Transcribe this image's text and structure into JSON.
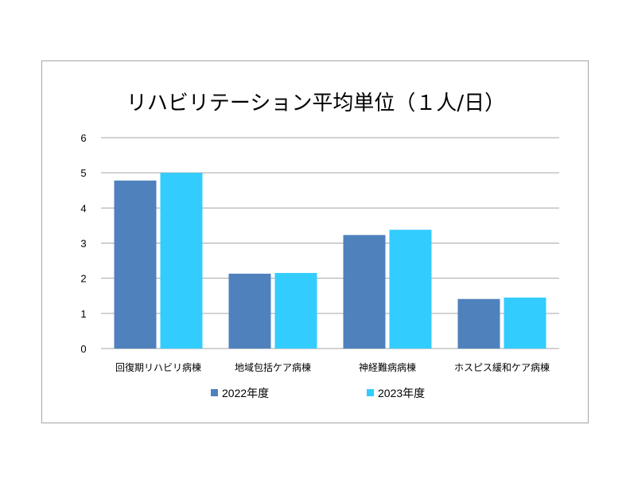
{
  "chart_data": {
    "type": "bar",
    "title": "リハビリテーション平均単位（１人/日）",
    "xlabel": "",
    "ylabel": "",
    "categories": [
      "回復期リハビリ病棟",
      "地域包括ケア病棟",
      "神経難病病棟",
      "ホスピス緩和ケア病棟"
    ],
    "series": [
      {
        "name": "2022年度",
        "values": [
          4.78,
          2.13,
          3.23,
          1.41
        ],
        "color": "#4f81bd"
      },
      {
        "name": "2023年度",
        "values": [
          5.0,
          2.15,
          3.38,
          1.45
        ],
        "color": "#33ccff"
      }
    ],
    "ylim": [
      0,
      6
    ],
    "yticks": [
      "0",
      "1",
      "2",
      "3",
      "4",
      "5",
      "6"
    ],
    "grid": true,
    "legend": "bottom"
  },
  "colors": {
    "gridline": "#a6a6a6",
    "frame": "#a6a6a6"
  }
}
